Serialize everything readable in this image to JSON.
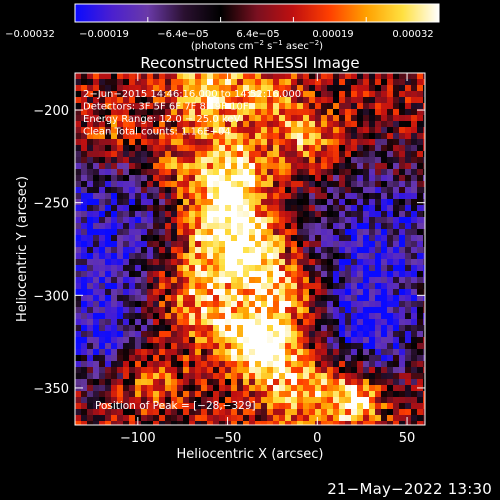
{
  "chart_data": {
    "type": "heatmap",
    "title": "Reconstructed RHESSI Image",
    "xlabel": "Heliocentric X (arcsec)",
    "ylabel": "Heliocentric Y (arcsec)",
    "xlim": [
      -135,
      60
    ],
    "ylim": [
      -370,
      -180
    ],
    "x_ticks": [
      -100,
      -50,
      0,
      50
    ],
    "x_tick_labels": [
      "−100",
      "−50",
      "0",
      "50"
    ],
    "y_ticks": [
      -200,
      -250,
      -300,
      -350
    ],
    "y_tick_labels": [
      "−200",
      "−250",
      "−300",
      "−350"
    ],
    "colorbar": {
      "range": [
        -0.00032,
        0.00032
      ],
      "tick_labels": [
        "−0.00032",
        "−0.00019",
        "−6.4e−05",
        "6.4e−05",
        "0.00019",
        "0.00032"
      ],
      "colors": [
        "#0a0aff",
        "#4a1fd0",
        "#6a3aa8",
        "#2a1030",
        "#000000",
        "#7a1020",
        "#c01010",
        "#ff4000",
        "#ffa000",
        "#ffe040",
        "#ffffff"
      ]
    },
    "colorbar_units": {
      "before": "(photons cm",
      "exp1": "−2",
      "mid1": " s",
      "exp2": "−1",
      "mid2": " asec",
      "exp3": "−2",
      "after": ")"
    },
    "info_lines": [
      "2−Jun−2015 14:46:16.000 to 14:52:16.000",
      "Detectors: 3F 5F 6F 7F 8F 9F 10F",
      "Energy Range: 12.0 − 25.0 keV",
      "Clean     Total counts: 1.16E+04"
    ],
    "peak_label": "Position of Peak = [−28,−329]",
    "peak": [
      -28,
      -329
    ]
  },
  "footer": {
    "timestamp": "21−May−2022 13:30"
  }
}
